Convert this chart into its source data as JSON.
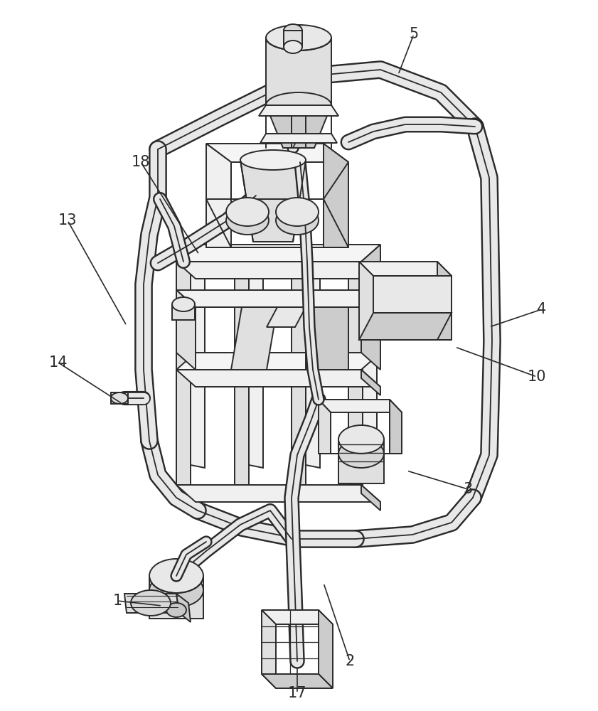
{
  "fig_w": 8.41,
  "fig_h": 10.0,
  "dpi": 100,
  "bg": "#ffffff",
  "lc": "#2a2a2a",
  "fc_light": "#f0f0f0",
  "fc_mid": "#e0e0e0",
  "fc_dark": "#cccccc",
  "lw": 1.4,
  "labels": [
    [
      "5",
      582,
      48,
      560,
      105
    ],
    [
      "18",
      198,
      228,
      280,
      358
    ],
    [
      "13",
      95,
      310,
      178,
      458
    ],
    [
      "14",
      82,
      510,
      172,
      568
    ],
    [
      "1",
      165,
      845,
      228,
      852
    ],
    [
      "17",
      418,
      975,
      418,
      938
    ],
    [
      "2",
      492,
      930,
      455,
      820
    ],
    [
      "3",
      658,
      688,
      572,
      662
    ],
    [
      "4",
      762,
      435,
      688,
      460
    ],
    [
      "10",
      755,
      530,
      640,
      488
    ]
  ]
}
